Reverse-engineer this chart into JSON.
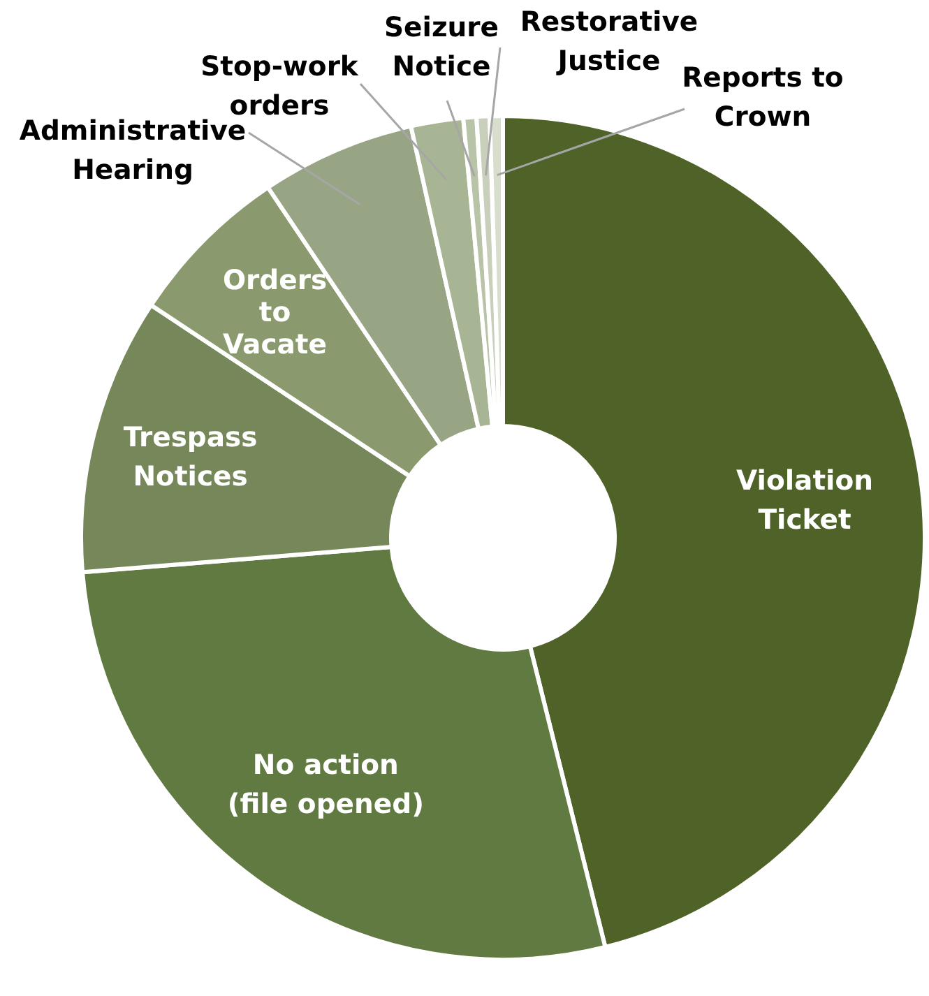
{
  "chart_data": {
    "type": "donut",
    "categories": [
      "Violation Ticket",
      "No action (file opened)",
      "Trespass Notices",
      "Orders to Vacate",
      "Administrative Hearing",
      "Stop-work orders",
      "Seizure Notice",
      "Restorative Justice",
      "Reports to Crown"
    ],
    "values": [
      46.1,
      27.6,
      10.6,
      6.3,
      5.9,
      2.0,
      0.5,
      0.5,
      0.5
    ],
    "colors": [
      "#4f6228",
      "#617a42",
      "#76885a",
      "#8a9a6e",
      "#97a585",
      "#a8b595",
      "#b8c3a8",
      "#c8d0bc",
      "#d8dece"
    ]
  }
}
